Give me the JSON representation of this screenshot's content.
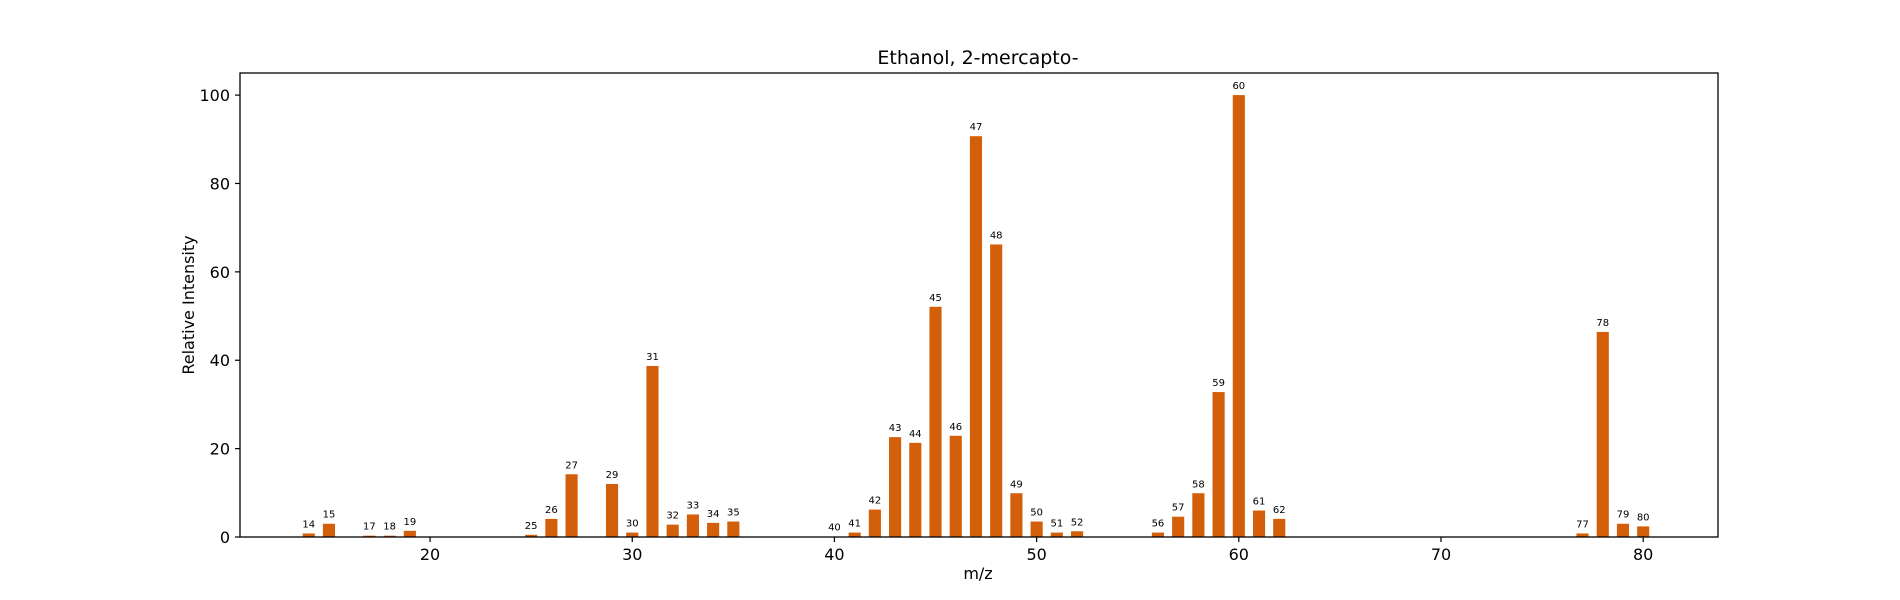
{
  "chart_data": {
    "type": "bar",
    "title": "Ethanol, 2-mercapto-",
    "xlabel": "m/z",
    "ylabel": "Relative Intensity",
    "xlim": [
      10.6,
      83.7
    ],
    "ylim": [
      0,
      105
    ],
    "xticks": [
      20,
      30,
      40,
      50,
      60,
      70,
      80
    ],
    "yticks": [
      0,
      20,
      40,
      60,
      80,
      100
    ],
    "bar_color": "#d45f0a",
    "grid": false,
    "legend": "none",
    "x": [
      14,
      15,
      17,
      18,
      19,
      25,
      26,
      27,
      29,
      30,
      31,
      32,
      33,
      34,
      35,
      40,
      41,
      42,
      43,
      44,
      45,
      46,
      47,
      48,
      49,
      50,
      51,
      52,
      56,
      57,
      58,
      59,
      60,
      61,
      62,
      77,
      78,
      79,
      80
    ],
    "values": [
      0.8,
      3.0,
      0.3,
      0.3,
      1.4,
      0.5,
      4.1,
      14.2,
      12.0,
      1.0,
      38.7,
      2.8,
      5.1,
      3.2,
      3.5,
      0.1,
      1.0,
      6.2,
      22.6,
      21.3,
      52.1,
      22.9,
      90.7,
      66.2,
      9.9,
      3.5,
      1.0,
      1.3,
      1.0,
      4.6,
      9.9,
      32.8,
      100.0,
      6.0,
      4.1,
      0.8,
      46.4,
      3.0,
      2.4
    ],
    "labels": [
      "14",
      "15",
      "17",
      "18",
      "19",
      "25",
      "26",
      "27",
      "29",
      "30",
      "31",
      "32",
      "33",
      "34",
      "35",
      "40",
      "41",
      "42",
      "43",
      "44",
      "45",
      "46",
      "47",
      "48",
      "49",
      "50",
      "51",
      "52",
      "56",
      "57",
      "58",
      "59",
      "60",
      "61",
      "62",
      "77",
      "78",
      "79",
      "80"
    ]
  }
}
